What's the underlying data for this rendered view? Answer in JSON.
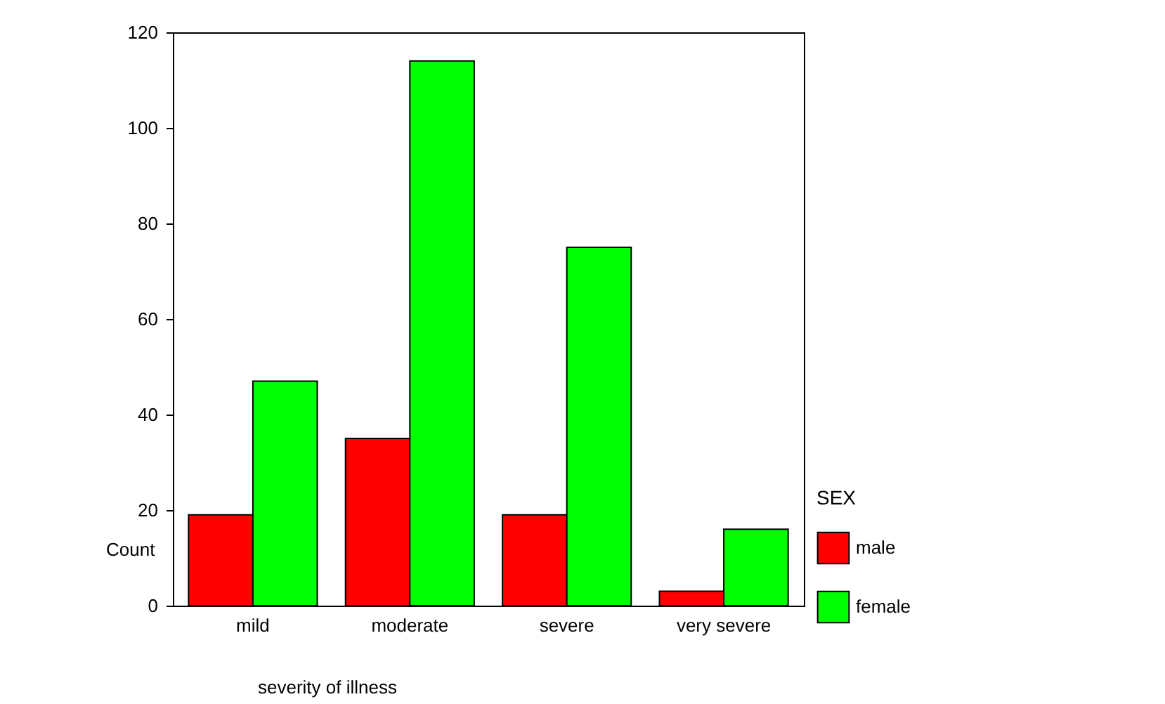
{
  "chart_data": {
    "type": "bar",
    "xlabel": "severity of illness",
    "ylabel": "Count",
    "legend_title": "SEX",
    "categories": [
      "mild",
      "moderate",
      "severe",
      "very severe"
    ],
    "series": [
      {
        "name": "male",
        "color": "#ff0000",
        "values": [
          19,
          35,
          19,
          3
        ]
      },
      {
        "name": "female",
        "color": "#00ff00",
        "values": [
          47,
          114,
          75,
          16
        ]
      }
    ],
    "ylim": [
      0,
      120
    ],
    "yticks": [
      0,
      20,
      40,
      60,
      80,
      100,
      120
    ],
    "grid": false,
    "legend": "right"
  }
}
